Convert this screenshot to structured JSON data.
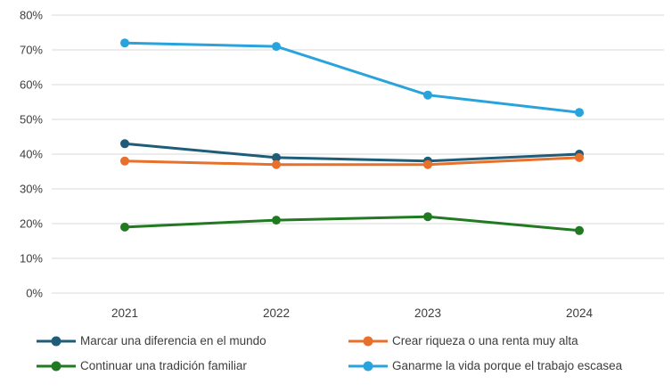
{
  "chart_data": {
    "type": "line",
    "title": "",
    "xlabel": "",
    "ylabel": "",
    "categories": [
      "2021",
      "2022",
      "2023",
      "2024"
    ],
    "series": [
      {
        "name": "Marcar una diferencia en el mundo",
        "color": "#1F5C78",
        "values": [
          43,
          39,
          38,
          40
        ]
      },
      {
        "name": "Crear riqueza o una renta muy alta",
        "color": "#E8702A",
        "values": [
          38,
          37,
          37,
          39
        ]
      },
      {
        "name": "Continuar una tradición familiar",
        "color": "#217A21",
        "values": [
          19,
          21,
          22,
          18
        ]
      },
      {
        "name": "Ganarme la vida porque el trabajo escasea",
        "color": "#29A3DC",
        "values": [
          72,
          71,
          57,
          52
        ]
      }
    ],
    "ylim": [
      0,
      80
    ],
    "ytick_values": [
      0,
      10,
      20,
      30,
      40,
      50,
      60,
      70,
      80
    ],
    "ytick_labels": [
      "0%",
      "10%",
      "20%",
      "30%",
      "40%",
      "50%",
      "60%",
      "70%",
      "80%"
    ],
    "grid": "horizontal",
    "gridline_color": "#D9D9D9",
    "tick_text_color": "#3d3d3d",
    "legend_position": "bottom",
    "marker": "circle",
    "line_width": 3,
    "marker_radius": 5
  }
}
